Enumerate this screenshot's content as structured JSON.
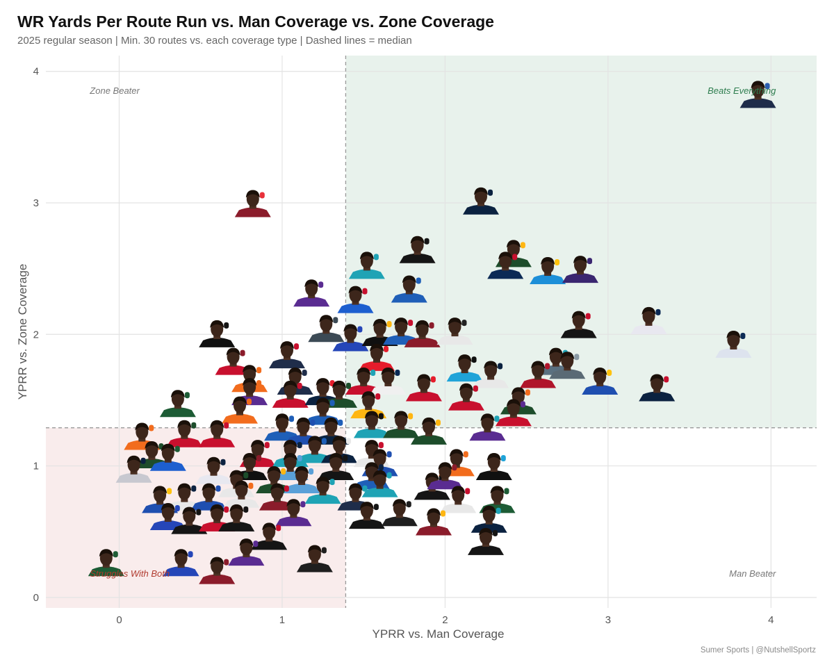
{
  "title": "WR Yards Per Route Run vs. Man Coverage vs. Zone Coverage",
  "subtitle": "2025 regular season | Min. 30 routes vs. each coverage type | Dashed lines = median",
  "caption": "Sumer Sports | @NutshellSportz",
  "chart_data": {
    "type": "scatter",
    "xlabel": "YPRR vs. Man Coverage",
    "ylabel": "YPRR vs. Zone Coverage",
    "xlim": [
      -0.45,
      4.28
    ],
    "ylim": [
      -0.08,
      4.12
    ],
    "x_ticks": [
      0,
      1,
      2,
      3,
      4
    ],
    "y_ticks": [
      0,
      1,
      2,
      3,
      4
    ],
    "grid": true,
    "median_x": 1.39,
    "median_y": 1.29,
    "quadrant_labels": {
      "top_left": "Zone Beater",
      "top_right": "Beats Everything",
      "bottom_left": "Struggles With Both",
      "bottom_right": "Man Beater"
    },
    "colors": {
      "beats_everything_fill": "#e8f2ec",
      "struggles_fill": "#f9ecec",
      "beats_everything_text": "#2e7d4f",
      "struggles_text": "#b03a2e",
      "neutral_text": "#777777",
      "grid": "#e3e3e3",
      "median_line": "#999999"
    },
    "points": [
      {
        "x": 3.92,
        "y": 3.78,
        "jersey": "#1f2d4a",
        "helmet": "#2b5fb0"
      },
      {
        "x": 2.22,
        "y": 2.97,
        "jersey": "#0b2240",
        "helmet": "#0b2240"
      },
      {
        "x": 0.82,
        "y": 2.95,
        "jersey": "#8b1c2b",
        "helmet": "#e8313a"
      },
      {
        "x": 2.42,
        "y": 2.57,
        "jersey": "#1d4d2b",
        "helmet": "#ffb612"
      },
      {
        "x": 1.83,
        "y": 2.6,
        "jersey": "#151515",
        "helmet": "#151515"
      },
      {
        "x": 1.52,
        "y": 2.48,
        "jersey": "#1fa3b5",
        "helmet": "#1fa3b5"
      },
      {
        "x": 2.37,
        "y": 2.48,
        "jersey": "#0b2a55",
        "helmet": "#c8102e"
      },
      {
        "x": 2.63,
        "y": 2.44,
        "jersey": "#1d8fd8",
        "helmet": "#ffc20e"
      },
      {
        "x": 2.83,
        "y": 2.45,
        "jersey": "#3a2670",
        "helmet": "#3a2670"
      },
      {
        "x": 1.78,
        "y": 2.3,
        "jersey": "#1f5fb8",
        "helmet": "#1f5fb8"
      },
      {
        "x": 1.18,
        "y": 2.27,
        "jersey": "#5a2c91",
        "helmet": "#5a2c91"
      },
      {
        "x": 1.45,
        "y": 2.22,
        "jersey": "#1d5fcf",
        "helmet": "#c8102e"
      },
      {
        "x": 0.6,
        "y": 1.96,
        "jersey": "#101010",
        "helmet": "#151515"
      },
      {
        "x": 2.82,
        "y": 2.03,
        "jersey": "#151515",
        "helmet": "#c8102e"
      },
      {
        "x": 3.25,
        "y": 2.06,
        "jersey": "#e8e8f0",
        "helmet": "#0b2a55"
      },
      {
        "x": 1.27,
        "y": 2.0,
        "jersey": "#3c4a55",
        "helmet": "#3c4a55"
      },
      {
        "x": 1.42,
        "y": 1.93,
        "jersey": "#2546b8",
        "helmet": "#2546b8"
      },
      {
        "x": 1.6,
        "y": 1.97,
        "jersey": "#101010",
        "helmet": "#ffb612"
      },
      {
        "x": 1.73,
        "y": 1.98,
        "jersey": "#1f5fb8",
        "helmet": "#c8102e"
      },
      {
        "x": 1.86,
        "y": 1.96,
        "jersey": "#8b1c2b",
        "helmet": "#8b1c2b"
      },
      {
        "x": 2.06,
        "y": 1.98,
        "jersey": "#e8e8e8",
        "helmet": "#222222"
      },
      {
        "x": 3.77,
        "y": 1.88,
        "jersey": "#dde3ee",
        "helmet": "#0b2a55"
      },
      {
        "x": 0.7,
        "y": 1.75,
        "jersey": "#c8102e",
        "helmet": "#8b1c2b"
      },
      {
        "x": 1.03,
        "y": 1.8,
        "jersey": "#1f2d4a",
        "helmet": "#c8102e"
      },
      {
        "x": 1.58,
        "y": 1.78,
        "jersey": "#e51c2b",
        "helmet": "#e51c2b"
      },
      {
        "x": 2.12,
        "y": 1.7,
        "jersey": "#1fa3d8",
        "helmet": "#101010"
      },
      {
        "x": 2.28,
        "y": 1.65,
        "jersey": "#e8e8e8",
        "helmet": "#0b2240"
      },
      {
        "x": 2.68,
        "y": 1.75,
        "jersey": "#5a7080",
        "helmet": "#1fa3b5"
      },
      {
        "x": 2.75,
        "y": 1.72,
        "jersey": "#5a6a75",
        "helmet": "#8a9aa5"
      },
      {
        "x": 2.57,
        "y": 1.65,
        "jersey": "#b0152b",
        "helmet": "#b0152b"
      },
      {
        "x": 0.8,
        "y": 1.62,
        "jersey": "#f26c1d",
        "helmet": "#f26c1d"
      },
      {
        "x": 1.08,
        "y": 1.6,
        "jersey": "#1f2d4a",
        "helmet": "#1f2d4a"
      },
      {
        "x": 1.5,
        "y": 1.6,
        "jersey": "#c8102e",
        "helmet": "#1fa3b5"
      },
      {
        "x": 1.65,
        "y": 1.6,
        "jersey": "#f0f0f0",
        "helmet": "#0b2a55"
      },
      {
        "x": 2.95,
        "y": 1.6,
        "jersey": "#1f4fb0",
        "helmet": "#ffc20e"
      },
      {
        "x": 3.3,
        "y": 1.55,
        "jersey": "#0b2240",
        "helmet": "#c8102e"
      },
      {
        "x": 0.8,
        "y": 1.52,
        "jersey": "#5a2c91",
        "helmet": "#f26c1d"
      },
      {
        "x": 1.05,
        "y": 1.5,
        "jersey": "#c8102e",
        "helmet": "#c8102e"
      },
      {
        "x": 1.25,
        "y": 1.52,
        "jersey": "#0b2240",
        "helmet": "#e51c2b"
      },
      {
        "x": 1.35,
        "y": 1.5,
        "jersey": "#1d4d2b",
        "helmet": "#1d4d2b"
      },
      {
        "x": 1.87,
        "y": 1.55,
        "jersey": "#c8102e",
        "helmet": "#e51c2b"
      },
      {
        "x": 2.13,
        "y": 1.48,
        "jersey": "#c8102e",
        "helmet": "#c8102e"
      },
      {
        "x": 0.36,
        "y": 1.43,
        "jersey": "#1d5c35",
        "helmet": "#1d5c35"
      },
      {
        "x": 0.74,
        "y": 1.38,
        "jersey": "#f26c1d",
        "helmet": "#f26c1d"
      },
      {
        "x": 1.53,
        "y": 1.42,
        "jersey": "#ffb612",
        "helmet": "#c8102e"
      },
      {
        "x": 2.45,
        "y": 1.45,
        "jersey": "#1d4d2b",
        "helmet": "#f26c1d"
      },
      {
        "x": 1.25,
        "y": 1.37,
        "jersey": "#1f5fb8",
        "helmet": "#1f5fb8"
      },
      {
        "x": 2.42,
        "y": 1.36,
        "jersey": "#c8102e",
        "helmet": "#5a2c91"
      },
      {
        "x": 0.14,
        "y": 1.18,
        "jersey": "#f26c1d",
        "helmet": "#f26c1d"
      },
      {
        "x": 0.4,
        "y": 1.2,
        "jersey": "#c8102e",
        "helmet": "#1d4d2b"
      },
      {
        "x": 0.6,
        "y": 1.2,
        "jersey": "#c8102e",
        "helmet": "#c8102e"
      },
      {
        "x": 1.0,
        "y": 1.25,
        "jersey": "#1f5fb8",
        "helmet": "#1f5fb8"
      },
      {
        "x": 1.13,
        "y": 1.22,
        "jersey": "#1f4fb0",
        "helmet": "#1f4fb0"
      },
      {
        "x": 1.3,
        "y": 1.22,
        "jersey": "#0b2240",
        "helmet": "#1f5fb8"
      },
      {
        "x": 1.55,
        "y": 1.27,
        "jersey": "#1fa3b5",
        "helmet": "#101010"
      },
      {
        "x": 1.73,
        "y": 1.27,
        "jersey": "#1d4d2b",
        "helmet": "#ffb612"
      },
      {
        "x": 1.9,
        "y": 1.22,
        "jersey": "#1d4d2b",
        "helmet": "#ffb612"
      },
      {
        "x": 2.26,
        "y": 1.25,
        "jersey": "#5a2c91",
        "helmet": "#1fa3b5"
      },
      {
        "x": 0.2,
        "y": 1.04,
        "jersey": "#1d4d2b",
        "helmet": "#1d4d2b"
      },
      {
        "x": 0.3,
        "y": 1.02,
        "jersey": "#1d5fcf",
        "helmet": "#1d5c35"
      },
      {
        "x": 0.85,
        "y": 1.05,
        "jersey": "#c8102e",
        "helmet": "#c8102e"
      },
      {
        "x": 1.05,
        "y": 1.05,
        "jersey": "#1fa3b5",
        "helmet": "#0b2240"
      },
      {
        "x": 1.2,
        "y": 1.08,
        "jersey": "#1fa3b5",
        "helmet": "#1f5fb8"
      },
      {
        "x": 1.35,
        "y": 1.08,
        "jersey": "#0b2240",
        "helmet": "#e8e8e8"
      },
      {
        "x": 1.55,
        "y": 1.05,
        "jersey": "#e8e8e8",
        "helmet": "#c8102e"
      },
      {
        "x": 0.09,
        "y": 0.93,
        "jersey": "#c8c8d0",
        "helmet": "#0b2240"
      },
      {
        "x": 0.58,
        "y": 0.92,
        "jersey": "#e8e8f0",
        "helmet": "#0b2240"
      },
      {
        "x": 0.8,
        "y": 0.95,
        "jersey": "#101010",
        "helmet": "#8b1c2b"
      },
      {
        "x": 1.05,
        "y": 0.95,
        "jersey": "#5aa0d8",
        "helmet": "#5aa0d8"
      },
      {
        "x": 1.33,
        "y": 0.95,
        "jersey": "#151515",
        "helmet": "#151515"
      },
      {
        "x": 1.6,
        "y": 0.98,
        "jersey": "#1f4fb0",
        "helmet": "#1f4fb0"
      },
      {
        "x": 2.07,
        "y": 0.98,
        "jersey": "#f26c1d",
        "helmet": "#f26c1d"
      },
      {
        "x": 2.3,
        "y": 0.95,
        "jersey": "#101010",
        "helmet": "#1fa3d8"
      },
      {
        "x": 0.72,
        "y": 0.82,
        "jersey": "#e8e8e8",
        "helmet": "#1d4d2b"
      },
      {
        "x": 0.95,
        "y": 0.85,
        "jersey": "#1d4d2b",
        "helmet": "#ffb612"
      },
      {
        "x": 1.12,
        "y": 0.85,
        "jersey": "#5aa0d8",
        "helmet": "#5aa0d8"
      },
      {
        "x": 1.55,
        "y": 0.88,
        "jersey": "#1f5fb8",
        "helmet": "#0b2240"
      },
      {
        "x": 1.6,
        "y": 0.82,
        "jersey": "#1fa3b5",
        "helmet": "#1fa3b5"
      },
      {
        "x": 1.92,
        "y": 0.8,
        "jersey": "#151515",
        "helmet": "#101010"
      },
      {
        "x": 2.0,
        "y": 0.88,
        "jersey": "#5a2c91",
        "helmet": "#8b1c2b"
      },
      {
        "x": 0.25,
        "y": 0.7,
        "jersey": "#1f4fb0",
        "helmet": "#ffc20e"
      },
      {
        "x": 0.4,
        "y": 0.72,
        "jersey": "#e8e8e8",
        "helmet": "#0b2240"
      },
      {
        "x": 0.55,
        "y": 0.72,
        "jersey": "#1f4fb0",
        "helmet": "#1f4fb0"
      },
      {
        "x": 0.75,
        "y": 0.74,
        "jersey": "#e8e8e8",
        "helmet": "#f26c1d"
      },
      {
        "x": 0.97,
        "y": 0.72,
        "jersey": "#8b1c2b",
        "helmet": "#c8102e"
      },
      {
        "x": 1.25,
        "y": 0.77,
        "jersey": "#1fa3b5",
        "helmet": "#1fa3b5"
      },
      {
        "x": 1.45,
        "y": 0.72,
        "jersey": "#1f2d4a",
        "helmet": "#1fa3b5"
      },
      {
        "x": 2.08,
        "y": 0.7,
        "jersey": "#e8e8e8",
        "helmet": "#c8102e"
      },
      {
        "x": 2.32,
        "y": 0.7,
        "jersey": "#1d5c35",
        "helmet": "#1d5c35"
      },
      {
        "x": 0.3,
        "y": 0.57,
        "jersey": "#2546b8",
        "helmet": "#2546b8"
      },
      {
        "x": 0.43,
        "y": 0.54,
        "jersey": "#151515",
        "helmet": "#151515"
      },
      {
        "x": 0.6,
        "y": 0.56,
        "jersey": "#c8102e",
        "helmet": "#c8102e"
      },
      {
        "x": 0.72,
        "y": 0.56,
        "jersey": "#151515",
        "helmet": "#151515"
      },
      {
        "x": 1.07,
        "y": 0.6,
        "jersey": "#5a2c91",
        "helmet": "#5a2c91"
      },
      {
        "x": 1.52,
        "y": 0.58,
        "jersey": "#151515",
        "helmet": "#151515"
      },
      {
        "x": 1.72,
        "y": 0.6,
        "jersey": "#1f1f1f",
        "helmet": "#1f1f1f"
      },
      {
        "x": 1.93,
        "y": 0.53,
        "jersey": "#8b1c2b",
        "helmet": "#ffb612"
      },
      {
        "x": 2.27,
        "y": 0.55,
        "jersey": "#0b2240",
        "helmet": "#1fa3b5"
      },
      {
        "x": 0.92,
        "y": 0.42,
        "jersey": "#151515",
        "helmet": "#c8102e"
      },
      {
        "x": 2.25,
        "y": 0.38,
        "jersey": "#151515",
        "helmet": "#151515"
      },
      {
        "x": 0.78,
        "y": 0.3,
        "jersey": "#5a2c91",
        "helmet": "#5a2c91"
      },
      {
        "x": -0.08,
        "y": 0.22,
        "jersey": "#1d5c35",
        "helmet": "#1d5c35"
      },
      {
        "x": 0.38,
        "y": 0.22,
        "jersey": "#2546b8",
        "helmet": "#2546b8"
      },
      {
        "x": 0.6,
        "y": 0.16,
        "jersey": "#8b1c2b",
        "helmet": "#8b1c2b"
      },
      {
        "x": 1.2,
        "y": 0.25,
        "jersey": "#1f1f1f",
        "helmet": "#1f1f1f"
      }
    ]
  }
}
